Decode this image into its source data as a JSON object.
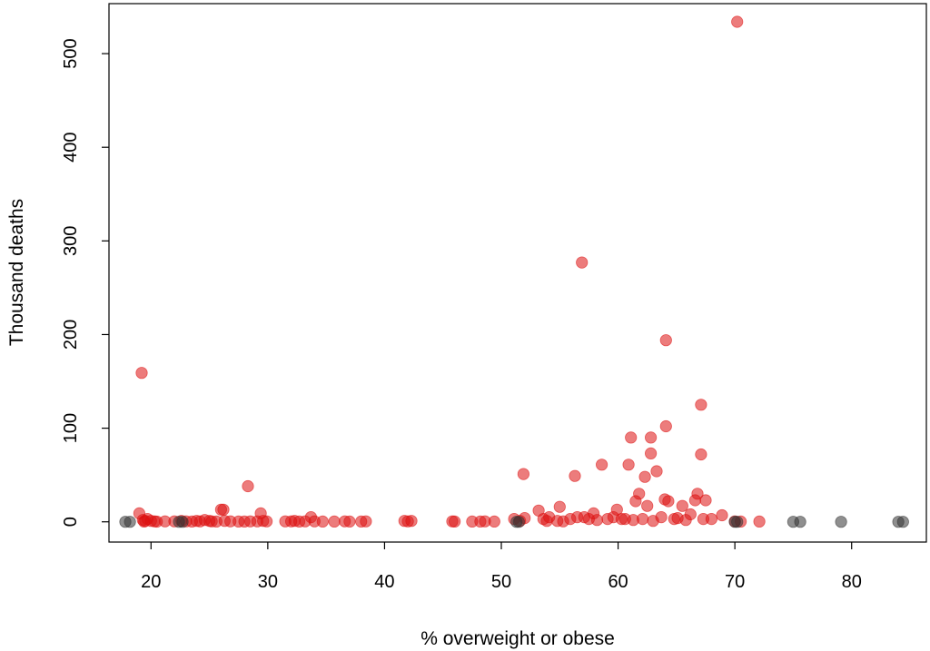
{
  "chart_data": {
    "type": "scatter",
    "title": "",
    "xlabel": "% overweight or obese",
    "ylabel": "Thousand deaths",
    "xlim": [
      16.4,
      86.4
    ],
    "ylim": [
      -21.6,
      553.4
    ],
    "xticks": [
      20,
      30,
      40,
      50,
      60,
      70,
      80
    ],
    "yticks": [
      0,
      100,
      200,
      300,
      400,
      500
    ],
    "grid": false,
    "legend": "none",
    "colors": {
      "red": "#dd1111",
      "black": "#333333"
    },
    "series": [
      {
        "color": "red",
        "points": [
          [
            19.2,
            159
          ],
          [
            19.0,
            9
          ],
          [
            19.3,
            2
          ],
          [
            19.5,
            1
          ],
          [
            19.7,
            3
          ],
          [
            20.0,
            1
          ],
          [
            20.3,
            0.5
          ],
          [
            19.4,
            0.3
          ],
          [
            20.5,
            0.2
          ],
          [
            21.2,
            0.5
          ],
          [
            22.0,
            0.5
          ],
          [
            22.6,
            1
          ],
          [
            23.0,
            0.5
          ],
          [
            23.5,
            0.3
          ],
          [
            23.9,
            1
          ],
          [
            24.2,
            0.5
          ],
          [
            24.6,
            2
          ],
          [
            25.0,
            1
          ],
          [
            25.2,
            0.5
          ],
          [
            25.6,
            0.3
          ],
          [
            26.0,
            13
          ],
          [
            26.2,
            13
          ],
          [
            26.3,
            1
          ],
          [
            26.8,
            0.5
          ],
          [
            27.5,
            0.3
          ],
          [
            28.0,
            0.3
          ],
          [
            28.3,
            38
          ],
          [
            28.5,
            0.5
          ],
          [
            29.1,
            0.5
          ],
          [
            29.4,
            9
          ],
          [
            29.6,
            1
          ],
          [
            29.9,
            0.5
          ],
          [
            31.5,
            0.5
          ],
          [
            32.0,
            0.5
          ],
          [
            32.3,
            1
          ],
          [
            32.7,
            0.3
          ],
          [
            33.2,
            0.5
          ],
          [
            33.7,
            5
          ],
          [
            34.0,
            0.5
          ],
          [
            34.7,
            0.3
          ],
          [
            35.7,
            0.3
          ],
          [
            36.6,
            0.5
          ],
          [
            37.0,
            0.3
          ],
          [
            38.0,
            0.3
          ],
          [
            38.4,
            0.5
          ],
          [
            41.7,
            1
          ],
          [
            42.0,
            0.5
          ],
          [
            42.3,
            1
          ],
          [
            45.8,
            0.5
          ],
          [
            46.0,
            0.3
          ],
          [
            47.5,
            0.3
          ],
          [
            48.2,
            0.3
          ],
          [
            48.6,
            0.5
          ],
          [
            49.4,
            0.3
          ],
          [
            51.1,
            3
          ],
          [
            51.6,
            1
          ],
          [
            51.9,
            51
          ],
          [
            52.0,
            4
          ],
          [
            53.2,
            12
          ],
          [
            53.6,
            3
          ],
          [
            53.9,
            1
          ],
          [
            54.1,
            5
          ],
          [
            54.8,
            1
          ],
          [
            55.0,
            16
          ],
          [
            55.3,
            0.5
          ],
          [
            55.9,
            3
          ],
          [
            56.3,
            49
          ],
          [
            56.5,
            5
          ],
          [
            56.9,
            277
          ],
          [
            57.1,
            5
          ],
          [
            57.5,
            3
          ],
          [
            57.9,
            9
          ],
          [
            58.2,
            2
          ],
          [
            58.6,
            61
          ],
          [
            59.1,
            3
          ],
          [
            59.6,
            5
          ],
          [
            59.9,
            13
          ],
          [
            60.3,
            3
          ],
          [
            60.6,
            3
          ],
          [
            60.9,
            61
          ],
          [
            61.1,
            90
          ],
          [
            61.3,
            2
          ],
          [
            61.5,
            22
          ],
          [
            61.8,
            30
          ],
          [
            62.1,
            3
          ],
          [
            62.3,
            48
          ],
          [
            62.5,
            17
          ],
          [
            62.8,
            90
          ],
          [
            62.8,
            73
          ],
          [
            63.0,
            1
          ],
          [
            63.3,
            54
          ],
          [
            63.7,
            5
          ],
          [
            64.0,
            24
          ],
          [
            64.1,
            194
          ],
          [
            64.1,
            102
          ],
          [
            64.3,
            22
          ],
          [
            64.8,
            3
          ],
          [
            65.1,
            4
          ],
          [
            65.5,
            17
          ],
          [
            65.8,
            2
          ],
          [
            66.2,
            8
          ],
          [
            66.6,
            23
          ],
          [
            66.8,
            30
          ],
          [
            67.1,
            125
          ],
          [
            67.1,
            72
          ],
          [
            67.3,
            3
          ],
          [
            67.5,
            23
          ],
          [
            68.0,
            3
          ],
          [
            68.9,
            7
          ],
          [
            70.0,
            0.5
          ],
          [
            70.2,
            534
          ],
          [
            70.5,
            0.3
          ],
          [
            72.1,
            0.3
          ]
        ]
      },
      {
        "color": "black",
        "points": [
          [
            17.8,
            0
          ],
          [
            18.2,
            0
          ],
          [
            22.4,
            0
          ],
          [
            22.7,
            0
          ],
          [
            51.3,
            0
          ],
          [
            51.5,
            0
          ],
          [
            70.0,
            0
          ],
          [
            70.2,
            0
          ],
          [
            75.0,
            0
          ],
          [
            75.6,
            0
          ],
          [
            79.1,
            0
          ],
          [
            84.0,
            0
          ],
          [
            84.4,
            0
          ]
        ]
      }
    ]
  }
}
